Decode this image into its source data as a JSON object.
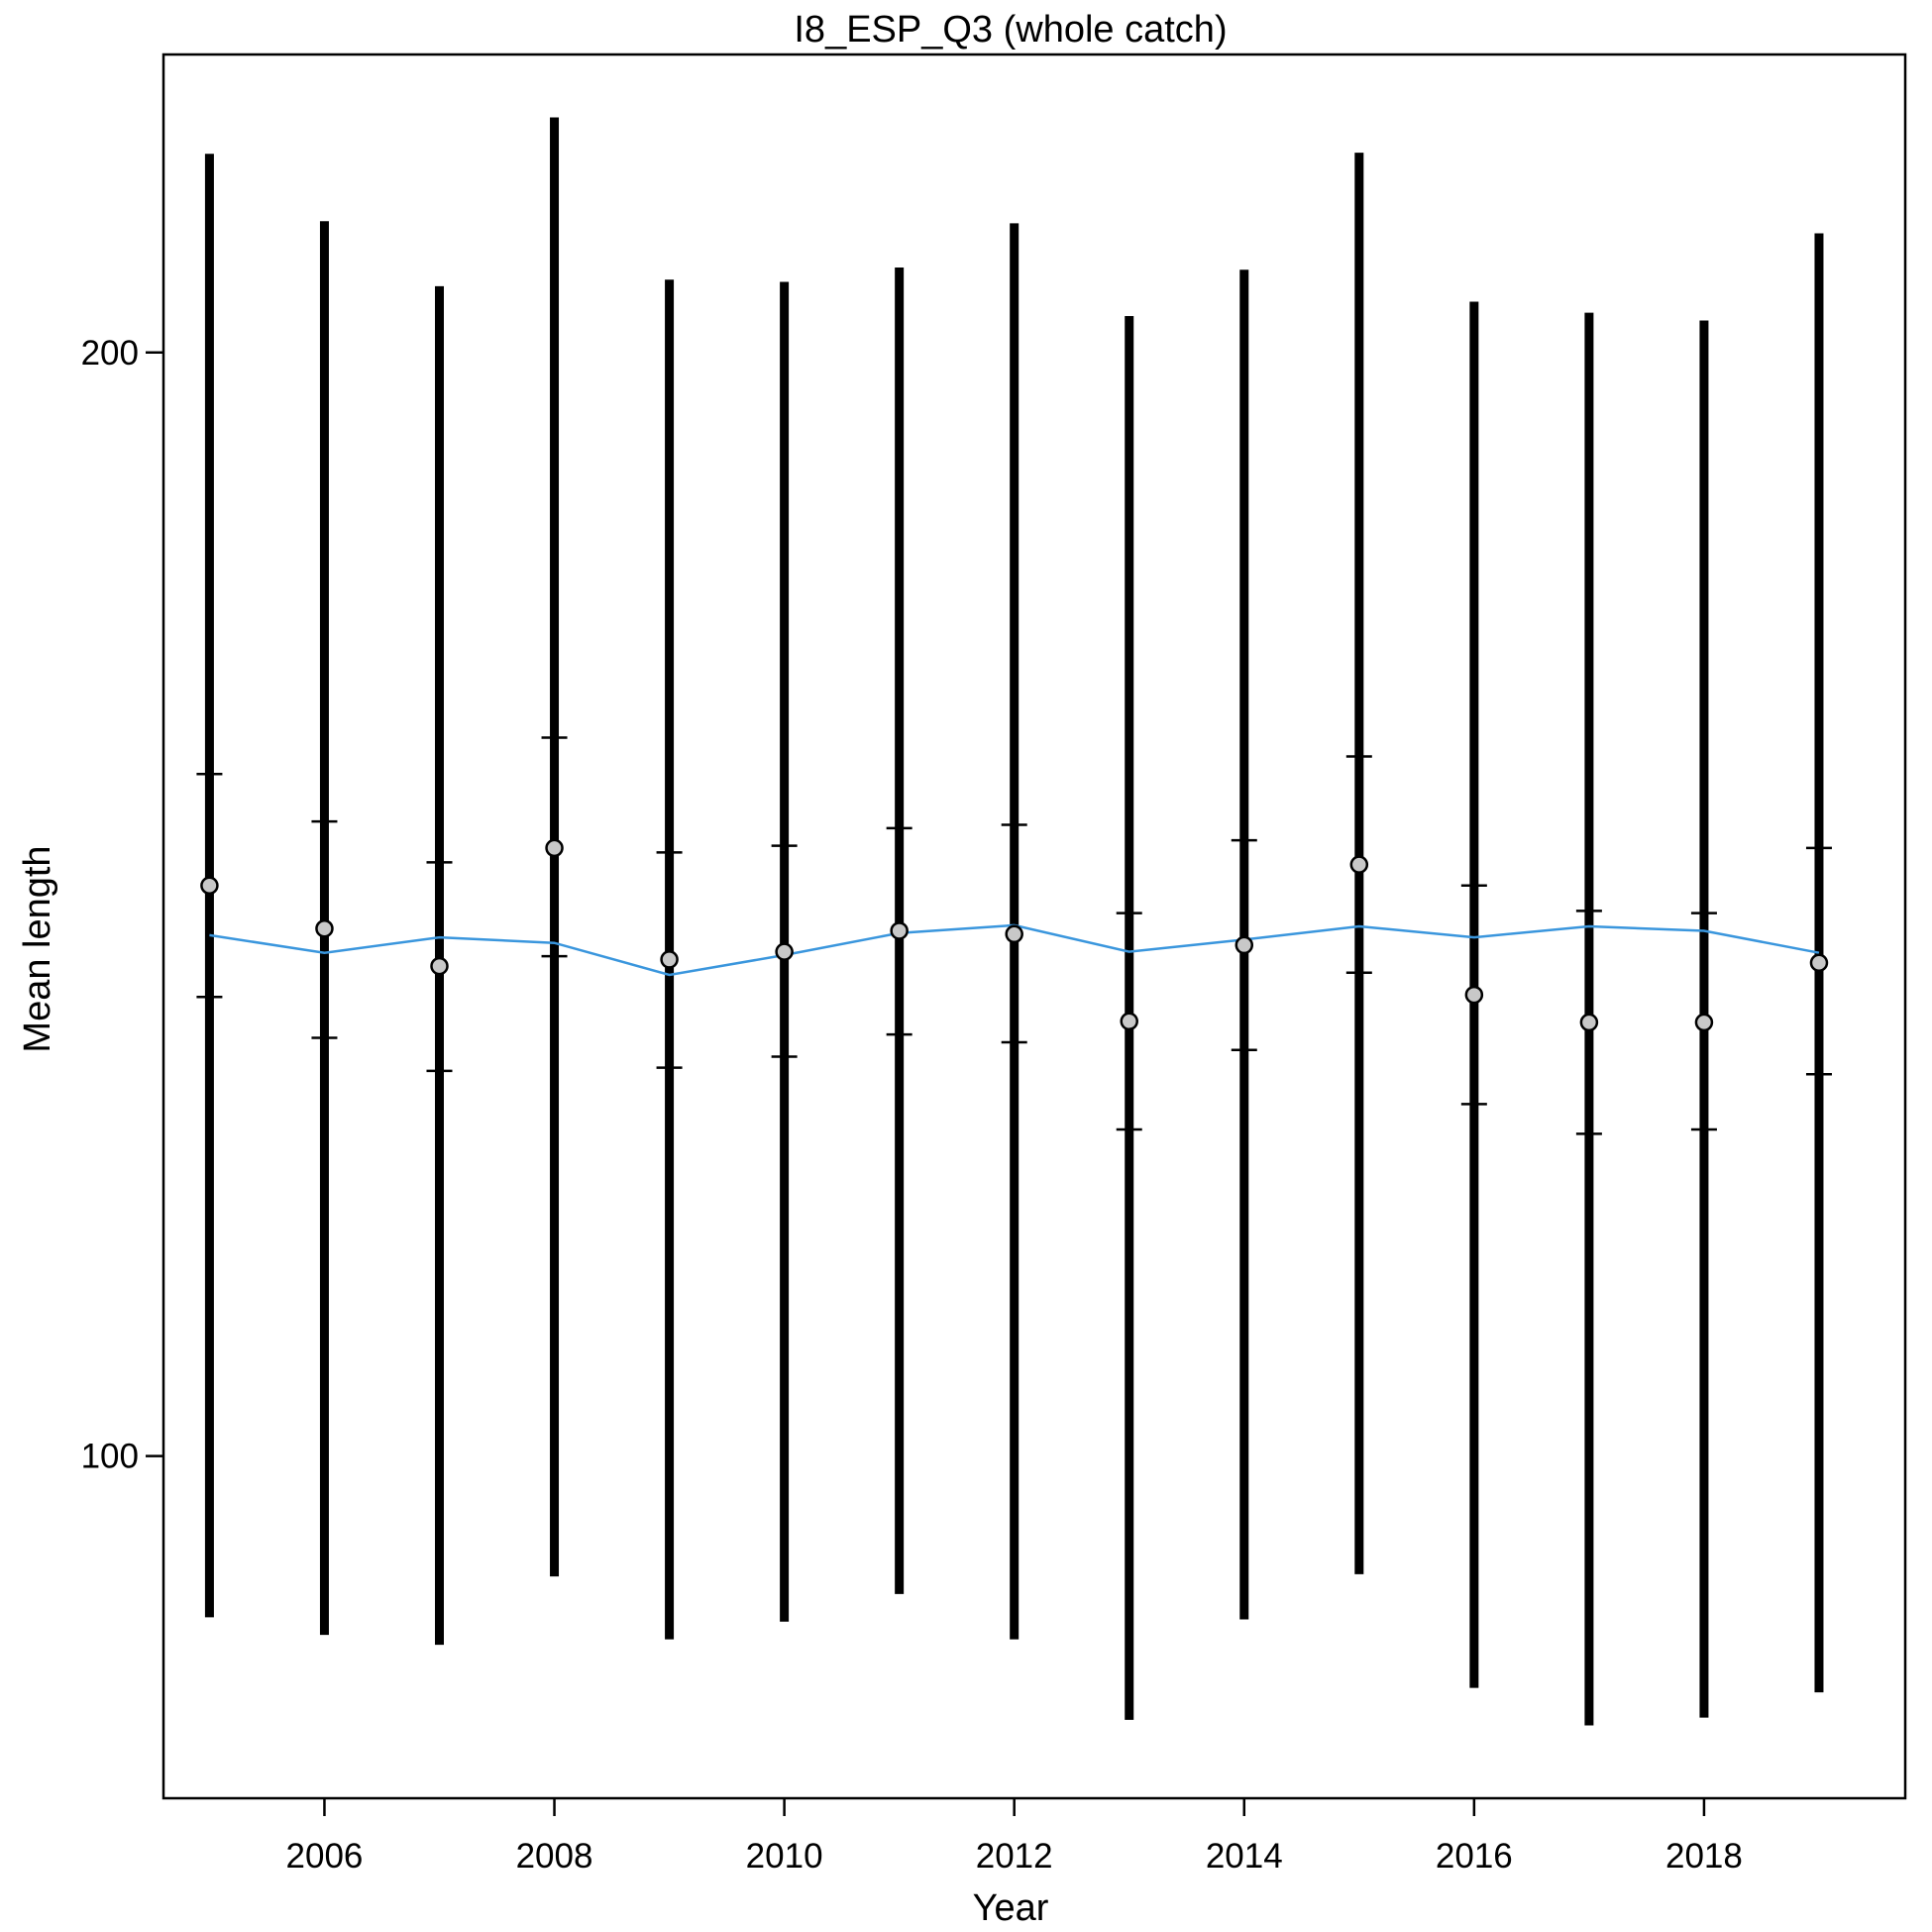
{
  "chart_data": {
    "type": "scatter",
    "title": "I8_ESP_Q3 (whole catch)",
    "xlabel": "Year",
    "ylabel": "Mean length",
    "xlim": [
      2004.6,
      2019.75
    ],
    "ylim": [
      69,
      227
    ],
    "x_ticks": [
      2006,
      2008,
      2010,
      2012,
      2014,
      2016,
      2018
    ],
    "y_ticks": [
      100,
      200
    ],
    "grid": false,
    "colors": {
      "fitted_line": "#3a96dd",
      "observed_point_fill": "#c8c8c8",
      "error_bar": "#000000",
      "frame": "#000000"
    },
    "series": [
      {
        "kind": "observed_mean",
        "x": [
          2005,
          2006,
          2007,
          2008,
          2009,
          2010,
          2011,
          2012,
          2013,
          2014,
          2015,
          2016,
          2017,
          2018,
          2019
        ],
        "y": [
          151.7,
          147.8,
          144.4,
          155.1,
          145.0,
          145.7,
          147.6,
          147.3,
          139.4,
          146.3,
          153.6,
          141.8,
          139.3,
          139.3,
          144.7
        ]
      },
      {
        "kind": "expected_mean",
        "x": [
          2005,
          2006,
          2007,
          2008,
          2009,
          2010,
          2011,
          2012,
          2013,
          2014,
          2015,
          2016,
          2017,
          2018,
          2019
        ],
        "y": [
          147.2,
          145.6,
          147.0,
          146.5,
          143.6,
          145.4,
          147.4,
          148.1,
          145.7,
          146.8,
          148.0,
          147.0,
          148.0,
          147.6,
          145.6
        ]
      }
    ],
    "inner_interval": {
      "x": [
        2005,
        2006,
        2007,
        2008,
        2009,
        2010,
        2011,
        2012,
        2013,
        2014,
        2015,
        2016,
        2017,
        2018,
        2019
      ],
      "lower": [
        141.6,
        137.9,
        134.9,
        145.3,
        135.2,
        136.2,
        138.2,
        137.5,
        129.6,
        136.8,
        143.8,
        131.9,
        129.2,
        129.6,
        134.6
      ],
      "upper": [
        161.8,
        157.5,
        153.8,
        165.1,
        154.7,
        155.3,
        156.9,
        157.2,
        149.2,
        155.8,
        163.4,
        151.7,
        149.4,
        149.2,
        155.1
      ]
    },
    "outer_interval": {
      "x": [
        2005,
        2006,
        2007,
        2008,
        2009,
        2010,
        2011,
        2012,
        2013,
        2014,
        2015,
        2016,
        2017,
        2018,
        2019
      ],
      "lower": [
        85.4,
        83.8,
        82.9,
        89.1,
        83.4,
        85.0,
        87.5,
        83.4,
        76.1,
        85.2,
        89.3,
        79.0,
        75.6,
        76.3,
        78.6
      ],
      "upper": [
        218.0,
        211.9,
        206.0,
        221.3,
        206.6,
        206.4,
        207.7,
        211.7,
        203.3,
        207.5,
        218.1,
        204.6,
        203.6,
        202.9,
        210.8
      ]
    }
  }
}
